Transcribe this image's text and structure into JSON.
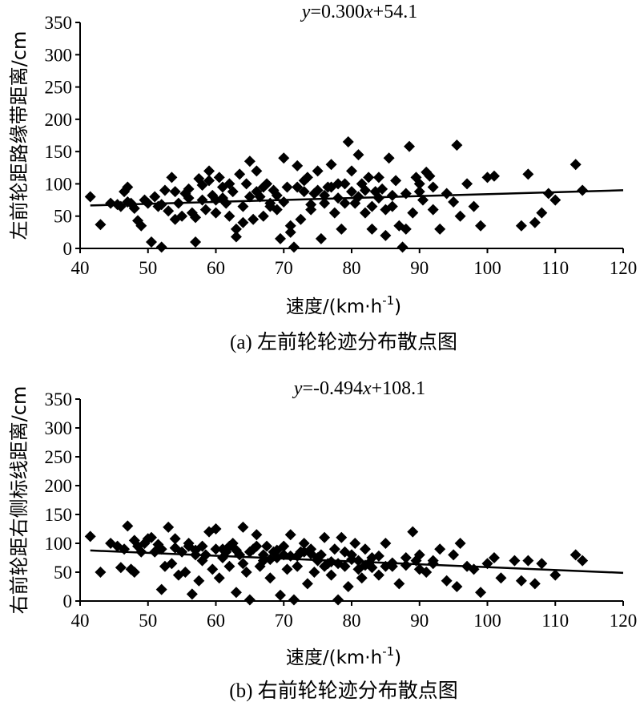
{
  "chart_data": [
    {
      "type": "scatter",
      "panel": "a",
      "equation_parts": [
        "y",
        "=0.300",
        "x",
        "+54.1"
      ],
      "trend": {
        "slope": 0.3,
        "intercept": 54.1
      },
      "ylabel": "左前轮距路缘带距离/cm",
      "xlabel_parts": [
        "速度/(km·h",
        "-1",
        ")"
      ],
      "caption": "(a) 左前轮轮迹分布散点图",
      "xlim": [
        40,
        120
      ],
      "ylim": [
        0,
        350
      ],
      "xticks": [
        "40",
        "50",
        "60",
        "70",
        "80",
        "90",
        "100",
        "110",
        "120"
      ],
      "yticks": [
        "0",
        "50",
        "100",
        "150",
        "200",
        "250",
        "300",
        "350"
      ],
      "points": [
        [
          41.5,
          80
        ],
        [
          43,
          37
        ],
        [
          44.5,
          70
        ],
        [
          45.5,
          68
        ],
        [
          46,
          65
        ],
        [
          46.5,
          88
        ],
        [
          47,
          95
        ],
        [
          47.5,
          70
        ],
        [
          48,
          62
        ],
        [
          48.5,
          43
        ],
        [
          49,
          35
        ],
        [
          49.5,
          75
        ],
        [
          50,
          70
        ],
        [
          50.5,
          10
        ],
        [
          51,
          80
        ],
        [
          51.5,
          65
        ],
        [
          52,
          2
        ],
        [
          52.5,
          90
        ],
        [
          53,
          58
        ],
        [
          53.5,
          110
        ],
        [
          54,
          45
        ],
        [
          54.5,
          70
        ],
        [
          55,
          50
        ],
        [
          55.5,
          85
        ],
        [
          56,
          92
        ],
        [
          56.5,
          55
        ],
        [
          57,
          10
        ],
        [
          57.5,
          108
        ],
        [
          58,
          75
        ],
        [
          58.5,
          60
        ],
        [
          59,
          120
        ],
        [
          59.5,
          82
        ],
        [
          60,
          55
        ],
        [
          60.5,
          110
        ],
        [
          61,
          95
        ],
        [
          61.5,
          70
        ],
        [
          62,
          50
        ],
        [
          62.5,
          88
        ],
        [
          63,
          18
        ],
        [
          63.5,
          115
        ],
        [
          64,
          65
        ],
        [
          64.5,
          100
        ],
        [
          65,
          135
        ],
        [
          65.5,
          45
        ],
        [
          66,
          120
        ],
        [
          66.5,
          80
        ],
        [
          67,
          50
        ],
        [
          67.5,
          100
        ],
        [
          68,
          70
        ],
        [
          68.5,
          90
        ],
        [
          69,
          82
        ],
        [
          69.5,
          15
        ],
        [
          70,
          140
        ],
        [
          70.5,
          95
        ],
        [
          71,
          35
        ],
        [
          71.5,
          2
        ],
        [
          72,
          128
        ],
        [
          72.5,
          45
        ],
        [
          73,
          88
        ],
        [
          73.5,
          110
        ],
        [
          74,
          60
        ],
        [
          74.5,
          85
        ],
        [
          75,
          120
        ],
        [
          75.5,
          15
        ],
        [
          76,
          70
        ],
        [
          76.5,
          95
        ],
        [
          77,
          130
        ],
        [
          77.5,
          55
        ],
        [
          78,
          78
        ],
        [
          78.5,
          30
        ],
        [
          79,
          100
        ],
        [
          79.5,
          165
        ],
        [
          80,
          120
        ],
        [
          80.5,
          70
        ],
        [
          81,
          145
        ],
        [
          81.5,
          100
        ],
        [
          82,
          55
        ],
        [
          82.5,
          110
        ],
        [
          83,
          30
        ],
        [
          83.5,
          88
        ],
        [
          84,
          78
        ],
        [
          84.5,
          92
        ],
        [
          85,
          20
        ],
        [
          85.5,
          140
        ],
        [
          86,
          65
        ],
        [
          86.5,
          105
        ],
        [
          87,
          35
        ],
        [
          87.5,
          2
        ],
        [
          88,
          85
        ],
        [
          88.5,
          158
        ],
        [
          89,
          55
        ],
        [
          89.5,
          110
        ],
        [
          90,
          100
        ],
        [
          90.5,
          75
        ],
        [
          91,
          118
        ],
        [
          91.5,
          112
        ],
        [
          92,
          95
        ],
        [
          93,
          30
        ],
        [
          94,
          85
        ],
        [
          95,
          72
        ],
        [
          95.5,
          160
        ],
        [
          96,
          50
        ],
        [
          97,
          100
        ],
        [
          98,
          65
        ],
        [
          99,
          35
        ],
        [
          100,
          110
        ],
        [
          101,
          112
        ],
        [
          105,
          35
        ],
        [
          106,
          115
        ],
        [
          107,
          40
        ],
        [
          108,
          55
        ],
        [
          109,
          85
        ],
        [
          110,
          75
        ],
        [
          113,
          130
        ],
        [
          114,
          90
        ],
        [
          60,
          75
        ],
        [
          65,
          80
        ],
        [
          70,
          72
        ],
        [
          75,
          90
        ],
        [
          80,
          88
        ],
        [
          85,
          60
        ],
        [
          62,
          100
        ],
        [
          68,
          65
        ],
        [
          72,
          95
        ],
        [
          78,
          100
        ],
        [
          82,
          90
        ],
        [
          54,
          88
        ],
        [
          58,
          98
        ],
        [
          66,
          88
        ],
        [
          74,
          68
        ],
        [
          86,
          82
        ],
        [
          90,
          88
        ],
        [
          47,
          72
        ],
        [
          52,
          68
        ],
        [
          56,
          78
        ],
        [
          76,
          82
        ],
        [
          69,
          60
        ],
        [
          64,
          40
        ],
        [
          71,
          25
        ],
        [
          57,
          48
        ],
        [
          61,
          78
        ],
        [
          63,
          30
        ],
        [
          73,
          105
        ],
        [
          83,
          65
        ],
        [
          77,
          95
        ],
        [
          59,
          105
        ],
        [
          67,
          95
        ],
        [
          79,
          70
        ],
        [
          81,
          80
        ],
        [
          84,
          110
        ],
        [
          88,
          30
        ],
        [
          92,
          60
        ]
      ]
    },
    {
      "type": "scatter",
      "panel": "b",
      "equation_parts": [
        "y",
        "=-0.494",
        "x",
        "+108.1"
      ],
      "trend": {
        "slope": -0.494,
        "intercept": 108.1
      },
      "ylabel": "右前轮距右侧标线距离/cm",
      "xlabel_parts": [
        "速度/(km·h",
        "-1",
        ")"
      ],
      "caption": "(b) 右前轮轮迹分布散点图",
      "xlim": [
        40,
        120
      ],
      "ylim": [
        0,
        350
      ],
      "xticks": [
        "40",
        "50",
        "60",
        "70",
        "80",
        "90",
        "100",
        "110",
        "120"
      ],
      "yticks": [
        "0",
        "50",
        "100",
        "150",
        "200",
        "250",
        "300",
        "350"
      ],
      "points": [
        [
          41.5,
          112
        ],
        [
          43,
          50
        ],
        [
          44.5,
          100
        ],
        [
          45.5,
          95
        ],
        [
          46,
          58
        ],
        [
          46.5,
          90
        ],
        [
          47,
          130
        ],
        [
          47.5,
          55
        ],
        [
          48,
          50
        ],
        [
          48.5,
          95
        ],
        [
          49,
          85
        ],
        [
          49.5,
          100
        ],
        [
          50,
          108
        ],
        [
          50.5,
          110
        ],
        [
          51,
          85
        ],
        [
          51.5,
          98
        ],
        [
          52,
          20
        ],
        [
          52.5,
          60
        ],
        [
          53,
          128
        ],
        [
          53.5,
          65
        ],
        [
          54,
          108
        ],
        [
          54.5,
          45
        ],
        [
          55,
          85
        ],
        [
          55.5,
          50
        ],
        [
          56,
          100
        ],
        [
          56.5,
          12
        ],
        [
          57,
          88
        ],
        [
          57.5,
          35
        ],
        [
          58,
          95
        ],
        [
          58.5,
          80
        ],
        [
          59,
          120
        ],
        [
          59.5,
          55
        ],
        [
          60,
          125
        ],
        [
          60.5,
          40
        ],
        [
          61,
          90
        ],
        [
          61.5,
          85
        ],
        [
          62,
          60
        ],
        [
          62.5,
          100
        ],
        [
          63,
          15
        ],
        [
          63.5,
          80
        ],
        [
          64,
          128
        ],
        [
          64.5,
          50
        ],
        [
          65,
          2
        ],
        [
          65.5,
          90
        ],
        [
          66,
          115
        ],
        [
          66.5,
          60
        ],
        [
          67,
          80
        ],
        [
          67.5,
          95
        ],
        [
          68,
          40
        ],
        [
          68.5,
          85
        ],
        [
          69,
          75
        ],
        [
          69.5,
          10
        ],
        [
          70,
          95
        ],
        [
          70.5,
          55
        ],
        [
          71,
          115
        ],
        [
          71.5,
          2
        ],
        [
          72,
          60
        ],
        [
          72.5,
          85
        ],
        [
          73,
          100
        ],
        [
          73.5,
          30
        ],
        [
          74,
          90
        ],
        [
          74.5,
          50
        ],
        [
          75,
          75
        ],
        [
          75.5,
          80
        ],
        [
          76,
          110
        ],
        [
          76.5,
          65
        ],
        [
          77,
          45
        ],
        [
          77.5,
          90
        ],
        [
          78,
          2
        ],
        [
          78.5,
          110
        ],
        [
          79,
          60
        ],
        [
          79.5,
          25
        ],
        [
          80,
          80
        ],
        [
          80.5,
          100
        ],
        [
          81,
          55
        ],
        [
          81.5,
          40
        ],
        [
          82,
          90
        ],
        [
          82.5,
          65
        ],
        [
          83,
          75
        ],
        [
          84,
          45
        ],
        [
          85,
          100
        ],
        [
          86,
          60
        ],
        [
          87,
          30
        ],
        [
          88,
          75
        ],
        [
          89,
          120
        ],
        [
          89.5,
          70
        ],
        [
          90,
          55
        ],
        [
          91,
          50
        ],
        [
          92,
          65
        ],
        [
          93,
          90
        ],
        [
          94,
          35
        ],
        [
          95,
          80
        ],
        [
          95.5,
          25
        ],
        [
          96,
          100
        ],
        [
          97,
          60
        ],
        [
          98,
          55
        ],
        [
          99,
          15
        ],
        [
          100,
          65
        ],
        [
          101,
          75
        ],
        [
          102,
          40
        ],
        [
          104,
          70
        ],
        [
          105,
          35
        ],
        [
          106,
          70
        ],
        [
          107,
          30
        ],
        [
          108,
          65
        ],
        [
          110,
          45
        ],
        [
          113,
          80
        ],
        [
          114,
          70
        ],
        [
          60,
          90
        ],
        [
          65,
          85
        ],
        [
          70,
          80
        ],
        [
          75,
          70
        ],
        [
          80,
          72
        ],
        [
          85,
          60
        ],
        [
          62,
          95
        ],
        [
          67,
          70
        ],
        [
          72,
          78
        ],
        [
          77,
          68
        ],
        [
          82,
          62
        ],
        [
          54,
          92
        ],
        [
          57,
          80
        ],
        [
          63,
          88
        ],
        [
          68,
          72
        ],
        [
          73,
          85
        ],
        [
          78,
          65
        ],
        [
          83,
          58
        ],
        [
          88,
          62
        ],
        [
          92,
          70
        ],
        [
          48,
          105
        ],
        [
          52,
          90
        ],
        [
          56,
          95
        ],
        [
          58,
          70
        ],
        [
          61,
          75
        ],
        [
          64,
          65
        ],
        [
          66,
          95
        ],
        [
          69,
          88
        ],
        [
          71,
          78
        ],
        [
          74,
          82
        ],
        [
          76,
          60
        ],
        [
          79,
          85
        ],
        [
          81,
          70
        ],
        [
          84,
          78
        ],
        [
          86,
          66
        ],
        [
          90,
          80
        ]
      ]
    }
  ]
}
